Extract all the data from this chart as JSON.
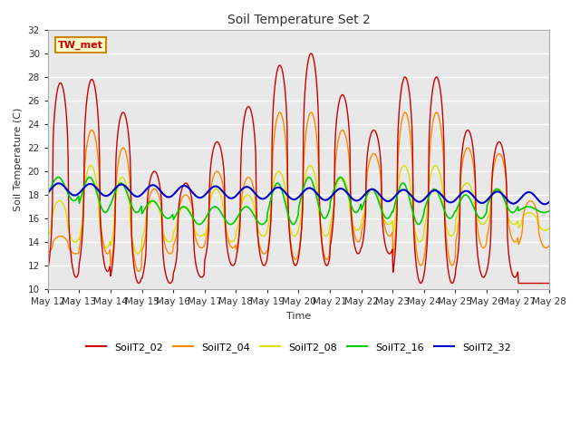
{
  "title": "Soil Temperature Set 2",
  "xlabel": "Time",
  "ylabel": "Soil Temperature (C)",
  "ylim": [
    10,
    32
  ],
  "yticks": [
    10,
    12,
    14,
    16,
    18,
    20,
    22,
    24,
    26,
    28,
    30,
    32
  ],
  "colors": {
    "SoilT2_02": "#cc0000",
    "SoilT2_04": "#ff8800",
    "SoilT2_08": "#dddd00",
    "SoilT2_16": "#00cc00",
    "SoilT2_32": "#0000cc"
  },
  "annotation_text": "TW_met",
  "annotation_color": "#cc0000",
  "annotation_bg": "#ffffcc",
  "plot_bg": "#e8e8e8",
  "fig_bg": "#ffffff",
  "grid_color": "#ffffff",
  "num_days": 16,
  "start_day": 12
}
